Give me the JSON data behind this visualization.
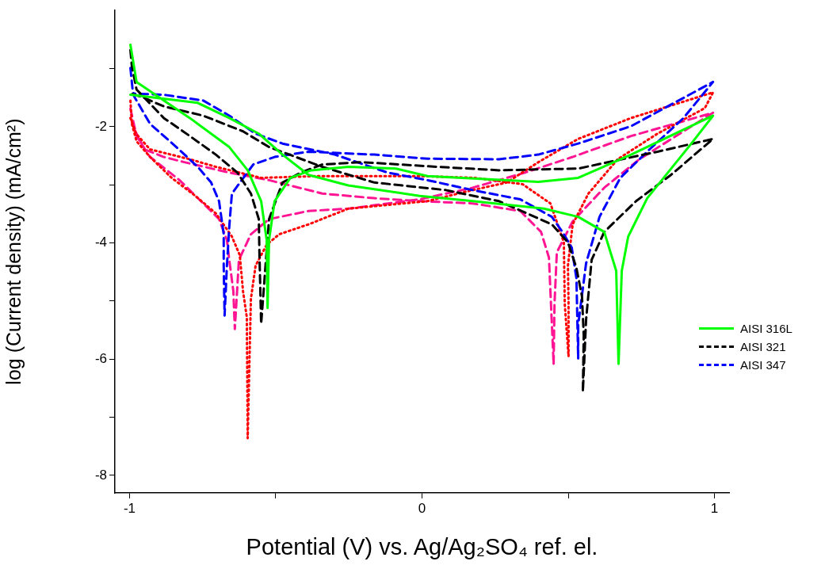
{
  "chart_data": {
    "type": "line",
    "xlabel": "Potential (V) vs. Ag/Ag₂SO₄ ref. el.",
    "ylabel": "log (Current density) (mA/cm²)",
    "xlim": [
      -1.05,
      1.05
    ],
    "xticks": [
      -1,
      {
        "value": -0.5,
        "label": null
      },
      0,
      {
        "value": 0.5,
        "label": null
      },
      1
    ],
    "ylim": [
      -8.3,
      0
    ],
    "yticks": [
      -8,
      {
        "value": -7,
        "label": null
      },
      -6,
      {
        "value": -5,
        "label": null
      },
      -4,
      {
        "value": -3,
        "label": null
      },
      -2,
      {
        "value": -1,
        "label": null
      }
    ],
    "grid": false,
    "legend": "bottom right",
    "marker": "none",
    "series": [
      {
        "name": "AISI 316L",
        "color": "#00ff00",
        "line_style": "solid",
        "x": [
          -0.997,
          -0.976,
          -0.794,
          -0.659,
          -0.596,
          -0.55,
          -0.531,
          -0.528,
          -0.523,
          -0.504,
          -0.45,
          -0.379,
          -0.252,
          -0.089,
          0.019,
          0.398,
          0.534,
          0.715,
          0.995,
          0.921,
          0.77,
          0.705,
          0.683,
          0.672,
          0.664,
          0.623,
          0.534,
          0.417,
          0.173,
          -0.008,
          -0.252,
          -0.388,
          -0.477,
          -0.558,
          -0.659,
          -0.767,
          -0.93,
          -0.997
        ],
        "values": [
          -0.59,
          -1.23,
          -1.85,
          -2.35,
          -2.75,
          -3.28,
          -3.95,
          -5.12,
          -3.95,
          -3.28,
          -2.88,
          -2.75,
          -2.69,
          -2.72,
          -2.85,
          -2.95,
          -2.88,
          -2.48,
          -1.81,
          -2.29,
          -3.23,
          -3.89,
          -4.48,
          -6.08,
          -4.48,
          -3.81,
          -3.55,
          -3.41,
          -3.28,
          -3.19,
          -3.01,
          -2.83,
          -2.48,
          -2.12,
          -1.85,
          -1.59,
          -1.49,
          -1.45
        ]
      },
      {
        "name": "AISI 321",
        "color": "#000000",
        "line_style": "dashed",
        "x": [
          -0.997,
          -0.992,
          -0.976,
          -0.883,
          -0.794,
          -0.705,
          -0.631,
          -0.585,
          -0.558,
          -0.556,
          -0.55,
          -0.523,
          -0.477,
          -0.415,
          -0.341,
          -0.206,
          0.019,
          0.263,
          0.534,
          0.805,
          0.995,
          0.851,
          0.732,
          0.623,
          0.58,
          0.561,
          0.55,
          0.553,
          0.547,
          0.528,
          0.499,
          0.444,
          0.263,
          0.081,
          -0.163,
          -0.341,
          -0.523,
          -0.612,
          -0.748,
          -0.883,
          -0.957,
          -0.995
        ],
        "values": [
          -0.68,
          -0.96,
          -1.36,
          -1.85,
          -2.16,
          -2.48,
          -2.79,
          -3.15,
          -3.59,
          -4.16,
          -5.39,
          -3.59,
          -2.96,
          -2.79,
          -2.65,
          -2.61,
          -2.68,
          -2.75,
          -2.72,
          -2.43,
          -2.21,
          -2.83,
          -3.28,
          -3.81,
          -4.29,
          -5.32,
          -6.56,
          -5.59,
          -4.92,
          -4.43,
          -3.99,
          -3.68,
          -3.28,
          -3.09,
          -2.96,
          -2.69,
          -2.35,
          -2.08,
          -1.81,
          -1.65,
          -1.49,
          -1.43
        ]
      },
      {
        "name": "AISI 347",
        "color": "#0000ff",
        "line_style": "dashed",
        "x": [
          -0.997,
          -0.989,
          -0.984,
          -0.93,
          -0.84,
          -0.767,
          -0.721,
          -0.694,
          -0.678,
          -0.678,
          -0.675,
          -0.667,
          -0.659,
          -0.65,
          -0.577,
          -0.504,
          -0.388,
          -0.163,
          0.019,
          0.263,
          0.398,
          0.534,
          0.715,
          0.995,
          0.894,
          0.778,
          0.678,
          0.607,
          0.561,
          0.534,
          0.534,
          0.528,
          0.512,
          0.48,
          0.444,
          0.336,
          0.173,
          0.019,
          -0.117,
          -0.298,
          -0.477,
          -0.569,
          -0.659,
          -0.748,
          -0.883,
          -0.984
        ],
        "values": [
          -0.99,
          -1.39,
          -1.48,
          -1.95,
          -2.35,
          -2.69,
          -2.96,
          -3.28,
          -3.85,
          -4.39,
          -5.25,
          -4.39,
          -3.72,
          -3.15,
          -2.65,
          -2.52,
          -2.43,
          -2.48,
          -2.55,
          -2.56,
          -2.48,
          -2.29,
          -1.99,
          -1.23,
          -1.85,
          -2.39,
          -2.88,
          -3.55,
          -4.35,
          -5.41,
          -5.99,
          -4.61,
          -4.08,
          -3.81,
          -3.55,
          -3.25,
          -3.09,
          -2.92,
          -2.79,
          -2.48,
          -2.29,
          -2.12,
          -1.81,
          -1.55,
          -1.45,
          -1.43
        ]
      },
      {
        "color": "#ff0000",
        "line_style": "dotted",
        "x": [
          -0.997,
          -0.992,
          -0.976,
          -0.93,
          -0.856,
          -0.775,
          -0.705,
          -0.65,
          -0.623,
          -0.612,
          -0.599,
          -0.596,
          -0.585,
          -0.569,
          -0.531,
          -0.488,
          -0.388,
          -0.252,
          0.019,
          0.173,
          0.29,
          0.398,
          0.534,
          0.715,
          0.995,
          0.967,
          0.805,
          0.669,
          0.569,
          0.515,
          0.499,
          0.501,
          0.501,
          0.488,
          0.485,
          0.439,
          0.344,
          0.182,
          -0.008,
          -0.36,
          -0.55,
          -0.705,
          -0.794,
          -0.93,
          -0.978,
          -0.997
        ],
        "values": [
          -1.55,
          -1.95,
          -2.25,
          -2.52,
          -2.88,
          -3.19,
          -3.49,
          -3.89,
          -4.21,
          -4.83,
          -5.28,
          -7.36,
          -4.96,
          -4.39,
          -4.03,
          -3.85,
          -3.68,
          -3.41,
          -3.28,
          -3.09,
          -2.96,
          -2.61,
          -2.21,
          -1.85,
          -1.41,
          -1.68,
          -2.12,
          -2.56,
          -3.15,
          -3.68,
          -4.39,
          -5.05,
          -5.95,
          -5.05,
          -3.99,
          -3.32,
          -2.99,
          -2.88,
          -2.85,
          -2.85,
          -2.88,
          -2.69,
          -2.56,
          -2.39,
          -2.12,
          -1.85
        ]
      },
      {
        "color": "#ff1493",
        "line_style": "dashed",
        "x": [
          -0.997,
          -0.976,
          -0.93,
          -0.829,
          -0.748,
          -0.694,
          -0.667,
          -0.659,
          -0.645,
          -0.64,
          -0.626,
          -0.585,
          -0.523,
          -0.388,
          -0.252,
          -0.008,
          0.173,
          0.352,
          0.515,
          0.715,
          0.995,
          0.894,
          0.743,
          0.623,
          0.515,
          0.461,
          0.453,
          0.45,
          0.434,
          0.407,
          0.336,
          0.173,
          -0.008,
          -0.163,
          -0.341,
          -0.523,
          -0.659,
          -0.813,
          -0.883,
          -0.949,
          -0.989
        ],
        "values": [
          -1.69,
          -2.16,
          -2.52,
          -2.92,
          -3.32,
          -3.59,
          -3.95,
          -4.29,
          -4.83,
          -5.48,
          -4.29,
          -3.85,
          -3.59,
          -3.45,
          -3.41,
          -3.25,
          -3.05,
          -2.79,
          -2.52,
          -2.16,
          -1.76,
          -2.08,
          -2.56,
          -3.05,
          -3.63,
          -4.16,
          -5.05,
          -6.09,
          -4.25,
          -3.81,
          -3.45,
          -3.32,
          -3.28,
          -3.23,
          -3.15,
          -2.92,
          -2.79,
          -2.61,
          -2.52,
          -2.39,
          -1.99
        ]
      }
    ]
  }
}
